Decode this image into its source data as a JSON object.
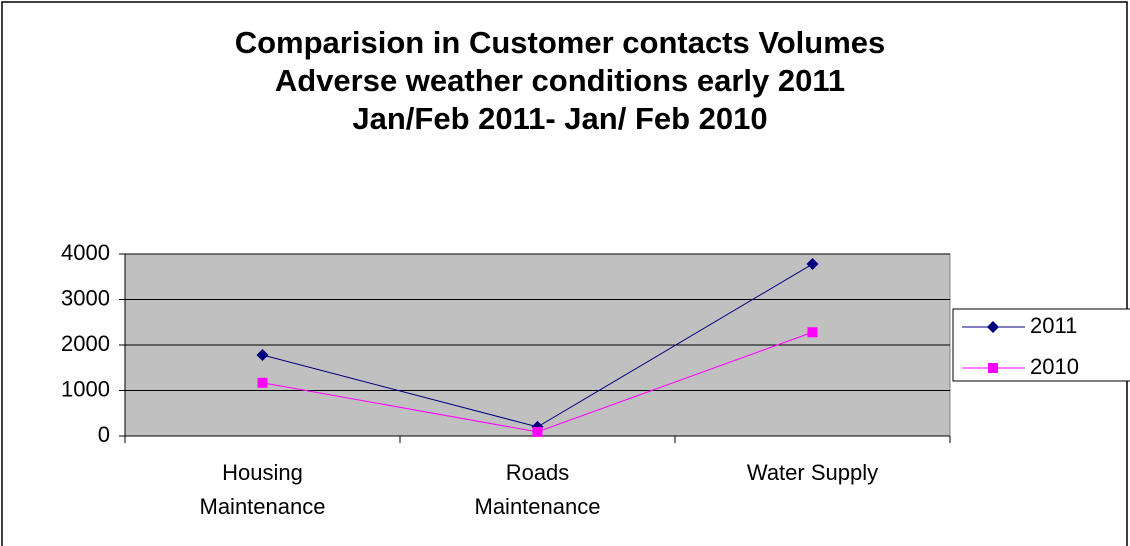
{
  "chart_data": {
    "type": "line",
    "title": [
      "Comparision in Customer contacts Volumes",
      "Adverse weather conditions early 2011",
      "Jan/Feb 2011- Jan/ Feb 2010"
    ],
    "categories": [
      [
        "Housing",
        "Maintenance"
      ],
      [
        "Roads",
        "Maintenance"
      ],
      [
        "Water Supply"
      ]
    ],
    "series": [
      {
        "name": "2011",
        "color": "#000080",
        "marker": "diamond",
        "values": [
          1780,
          200,
          3780
        ]
      },
      {
        "name": "2010",
        "color": "#ff00ff",
        "marker": "square",
        "values": [
          1170,
          90,
          2280
        ]
      }
    ],
    "ylim": [
      0,
      4000
    ],
    "yticks": [
      0,
      1000,
      2000,
      3000,
      4000
    ],
    "grid": true,
    "legend": "right"
  }
}
